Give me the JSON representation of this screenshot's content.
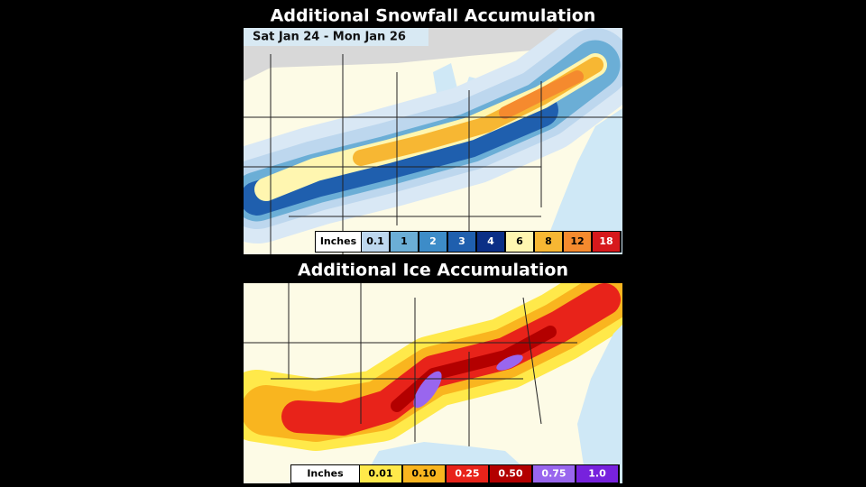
{
  "snow_panel": {
    "title": "Additional Snowfall Accumulation",
    "subtitle": "Sat Jan 24 - Mon Jan 26",
    "legend": {
      "unit": "Inches",
      "items": [
        {
          "label": "0.1",
          "color": "#bdd7ee"
        },
        {
          "label": "1",
          "color": "#6baed6"
        },
        {
          "label": "2",
          "color": "#3d8cc8"
        },
        {
          "label": "3",
          "color": "#1f5fae"
        },
        {
          "label": "4",
          "color": "#0b2f86"
        },
        {
          "label": "6",
          "color": "#fff6b0"
        },
        {
          "label": "8",
          "color": "#f7b733"
        },
        {
          "label": "12",
          "color": "#f58a2e"
        },
        {
          "label": "18",
          "color": "#d7191c"
        }
      ]
    }
  },
  "ice_panel": {
    "title": "Additional Ice Accumulation",
    "legend": {
      "unit": "Inches",
      "items": [
        {
          "label": "0.01",
          "color": "#ffe94a"
        },
        {
          "label": "0.10",
          "color": "#f9b51f"
        },
        {
          "label": "0.25",
          "color": "#e8231a"
        },
        {
          "label": "0.50",
          "color": "#b30000"
        },
        {
          "label": "0.75",
          "color": "#9966ee"
        },
        {
          "label": "1.0",
          "color": "#7722dd"
        }
      ]
    }
  }
}
